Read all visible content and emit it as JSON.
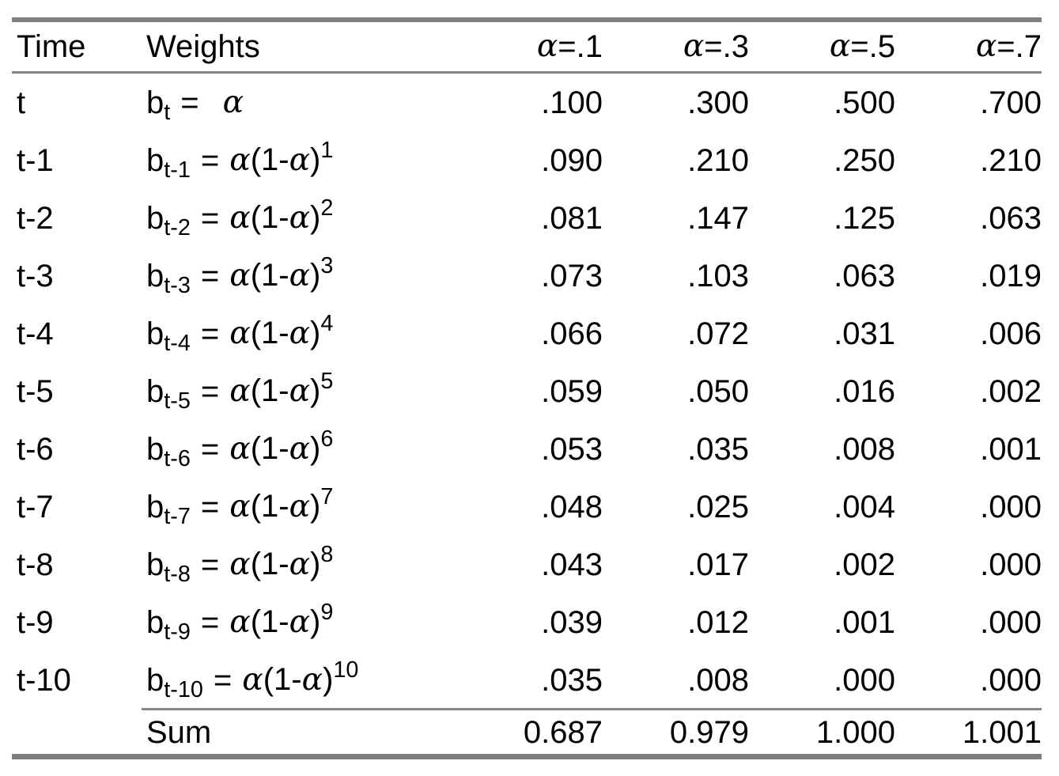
{
  "colors": {
    "background": "#ffffff",
    "text": "#000000",
    "rule_gray": "#7f7f7f",
    "thin_rule_gray": "#858585"
  },
  "table": {
    "header": {
      "time": "Time",
      "weights": "Weights",
      "alpha_suffixes": [
        "=.1",
        "=.3",
        "=.5",
        "=.7"
      ]
    },
    "formula": {
      "base": "b",
      "eq": "=",
      "alpha": "α",
      "expr_open": "(1-",
      "expr_close": ")"
    },
    "rows": [
      {
        "time": "t",
        "sub": "t",
        "exp": null,
        "values": [
          ".100",
          ".300",
          ".500",
          ".700"
        ]
      },
      {
        "time": "t-1",
        "sub": "t-1",
        "exp": "1",
        "values": [
          ".090",
          ".210",
          ".250",
          ".210"
        ]
      },
      {
        "time": "t-2",
        "sub": "t-2",
        "exp": "2",
        "values": [
          ".081",
          ".147",
          ".125",
          ".063"
        ]
      },
      {
        "time": "t-3",
        "sub": "t-3",
        "exp": "3",
        "values": [
          ".073",
          ".103",
          ".063",
          ".019"
        ]
      },
      {
        "time": "t-4",
        "sub": "t-4",
        "exp": "4",
        "values": [
          ".066",
          ".072",
          ".031",
          ".006"
        ]
      },
      {
        "time": "t-5",
        "sub": "t-5",
        "exp": "5",
        "values": [
          ".059",
          ".050",
          ".016",
          ".002"
        ]
      },
      {
        "time": "t-6",
        "sub": "t-6",
        "exp": "6",
        "values": [
          ".053",
          ".035",
          ".008",
          ".001"
        ]
      },
      {
        "time": "t-7",
        "sub": "t-7",
        "exp": "7",
        "values": [
          ".048",
          ".025",
          ".004",
          ".000"
        ]
      },
      {
        "time": "t-8",
        "sub": "t-8",
        "exp": "8",
        "values": [
          ".043",
          ".017",
          ".002",
          ".000"
        ]
      },
      {
        "time": "t-9",
        "sub": "t-9",
        "exp": "9",
        "values": [
          ".039",
          ".012",
          ".001",
          ".000"
        ]
      },
      {
        "time": "t-10",
        "sub": "t-10",
        "exp": "10",
        "values": [
          ".035",
          ".008",
          ".000",
          ".000"
        ]
      }
    ],
    "sum": {
      "label": "Sum",
      "values": [
        "0.687",
        "0.979",
        "1.000",
        "1.001"
      ]
    }
  },
  "chart_data": {
    "type": "table",
    "columns": [
      "Time",
      "Weights",
      "α=.1",
      "α=.3",
      "α=.5",
      "α=.7"
    ],
    "rows": [
      [
        "t",
        "b_t = α",
        0.1,
        0.3,
        0.5,
        0.7
      ],
      [
        "t-1",
        "b_t-1 = α(1-α)^1",
        0.09,
        0.21,
        0.25,
        0.21
      ],
      [
        "t-2",
        "b_t-2 = α(1-α)^2",
        0.081,
        0.147,
        0.125,
        0.063
      ],
      [
        "t-3",
        "b_t-3 = α(1-α)^3",
        0.073,
        0.103,
        0.063,
        0.019
      ],
      [
        "t-4",
        "b_t-4 = α(1-α)^4",
        0.066,
        0.072,
        0.031,
        0.006
      ],
      [
        "t-5",
        "b_t-5 = α(1-α)^5",
        0.059,
        0.05,
        0.016,
        0.002
      ],
      [
        "t-6",
        "b_t-6 = α(1-α)^6",
        0.053,
        0.035,
        0.008,
        0.001
      ],
      [
        "t-7",
        "b_t-7 = α(1-α)^7",
        0.048,
        0.025,
        0.004,
        0.0
      ],
      [
        "t-8",
        "b_t-8 = α(1-α)^8",
        0.043,
        0.017,
        0.002,
        0.0
      ],
      [
        "t-9",
        "b_t-9 = α(1-α)^9",
        0.039,
        0.012,
        0.001,
        0.0
      ],
      [
        "t-10",
        "b_t-10 = α(1-α)^10",
        0.035,
        0.008,
        0.0,
        0.0
      ],
      [
        "",
        "Sum",
        0.687,
        0.979,
        1.0,
        1.001
      ]
    ],
    "grid": false,
    "legend": false
  }
}
